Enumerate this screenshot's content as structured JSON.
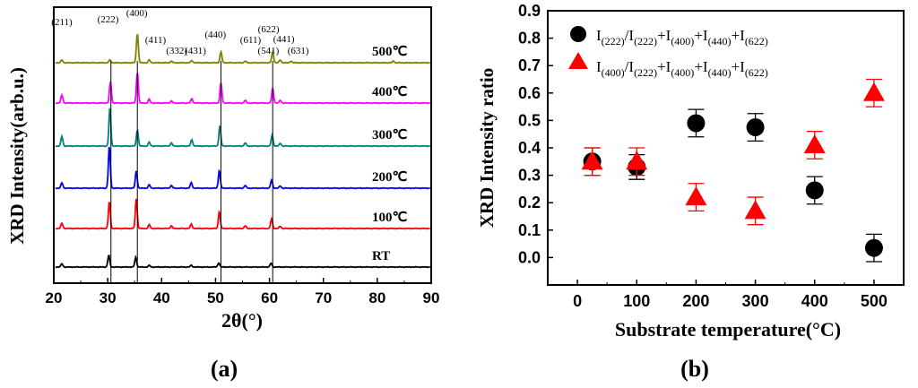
{
  "chart_data": [
    {
      "type": "line",
      "panel_label": "(a)",
      "xlabel": "2θ(°)",
      "ylabel": "XRD Intensity(arb.u.)",
      "xlim": [
        20,
        90
      ],
      "x_ticks": [
        "20",
        "30",
        "40",
        "50",
        "60",
        "70",
        "80",
        "90"
      ],
      "vertical_reference_lines": [
        30.6,
        35.5,
        51.0,
        60.6
      ],
      "peak_annotations": [
        {
          "label": "(211)",
          "x": 21.5
        },
        {
          "label": "(222)",
          "x": 30.4
        },
        {
          "label": "(400)",
          "x": 35.4
        },
        {
          "label": "(411)",
          "x": 37.7
        },
        {
          "label": "(332)",
          "x": 41.8
        },
        {
          "label": "(431)",
          "x": 45.6
        },
        {
          "label": "(440)",
          "x": 50.8
        },
        {
          "label": "(611)",
          "x": 55.5
        },
        {
          "label": "(541)",
          "x": 58.8
        },
        {
          "label": "(622)",
          "x": 60.5
        },
        {
          "label": "(441)",
          "x": 62.0
        },
        {
          "label": "(631)",
          "x": 64.0
        }
      ],
      "series": [
        {
          "name": "500℃",
          "color": "#808000",
          "offset": 5,
          "peaks": [
            {
              "x": 21.5,
              "h": 0.05
            },
            {
              "x": 30.4,
              "h": 0.05
            },
            {
              "x": 35.5,
              "h": 0.55
            },
            {
              "x": 37.7,
              "h": 0.05
            },
            {
              "x": 41.8,
              "h": 0.03
            },
            {
              "x": 45.6,
              "h": 0.04
            },
            {
              "x": 51.0,
              "h": 0.2
            },
            {
              "x": 55.5,
              "h": 0.03
            },
            {
              "x": 60.6,
              "h": 0.2
            },
            {
              "x": 62.0,
              "h": 0.05
            },
            {
              "x": 64.0,
              "h": 0.03
            },
            {
              "x": 83.0,
              "h": 0.03
            }
          ]
        },
        {
          "name": "400℃",
          "color": "#ff00ff",
          "offset": 4,
          "peaks": [
            {
              "x": 21.5,
              "h": 0.15
            },
            {
              "x": 30.5,
              "h": 0.4
            },
            {
              "x": 35.5,
              "h": 0.58
            },
            {
              "x": 37.7,
              "h": 0.07
            },
            {
              "x": 41.8,
              "h": 0.04
            },
            {
              "x": 45.6,
              "h": 0.08
            },
            {
              "x": 51.0,
              "h": 0.38
            },
            {
              "x": 55.5,
              "h": 0.05
            },
            {
              "x": 60.6,
              "h": 0.28
            },
            {
              "x": 62.0,
              "h": 0.05
            }
          ]
        },
        {
          "name": "300℃",
          "color": "#008080",
          "offset": 3,
          "peaks": [
            {
              "x": 21.5,
              "h": 0.18
            },
            {
              "x": 30.4,
              "h": 0.7
            },
            {
              "x": 35.5,
              "h": 0.3
            },
            {
              "x": 37.7,
              "h": 0.07
            },
            {
              "x": 41.8,
              "h": 0.06
            },
            {
              "x": 45.6,
              "h": 0.12
            },
            {
              "x": 50.8,
              "h": 0.38
            },
            {
              "x": 55.5,
              "h": 0.06
            },
            {
              "x": 60.5,
              "h": 0.2
            },
            {
              "x": 62.0,
              "h": 0.05
            }
          ]
        },
        {
          "name": "200℃",
          "color": "#0000ff",
          "offset": 2,
          "peaks": [
            {
              "x": 21.5,
              "h": 0.1
            },
            {
              "x": 30.3,
              "h": 0.78
            },
            {
              "x": 35.3,
              "h": 0.32
            },
            {
              "x": 37.7,
              "h": 0.06
            },
            {
              "x": 41.8,
              "h": 0.05
            },
            {
              "x": 45.5,
              "h": 0.1
            },
            {
              "x": 50.7,
              "h": 0.33
            },
            {
              "x": 55.5,
              "h": 0.05
            },
            {
              "x": 60.4,
              "h": 0.15
            },
            {
              "x": 62.0,
              "h": 0.04
            }
          ]
        },
        {
          "name": "100℃",
          "color": "#ff0000",
          "offset": 1,
          "peaks": [
            {
              "x": 21.5,
              "h": 0.1
            },
            {
              "x": 30.3,
              "h": 0.5
            },
            {
              "x": 35.3,
              "h": 0.55
            },
            {
              "x": 37.7,
              "h": 0.07
            },
            {
              "x": 41.8,
              "h": 0.05
            },
            {
              "x": 45.5,
              "h": 0.08
            },
            {
              "x": 50.7,
              "h": 0.32
            },
            {
              "x": 55.5,
              "h": 0.05
            },
            {
              "x": 60.4,
              "h": 0.18
            },
            {
              "x": 62.0,
              "h": 0.04
            }
          ]
        },
        {
          "name": "RT",
          "color": "#000000",
          "offset": 0,
          "peaks": [
            {
              "x": 21.5,
              "h": 0.06
            },
            {
              "x": 30.2,
              "h": 0.22
            },
            {
              "x": 35.2,
              "h": 0.18
            },
            {
              "x": 37.7,
              "h": 0.03
            },
            {
              "x": 45.5,
              "h": 0.03
            },
            {
              "x": 50.6,
              "h": 0.08
            },
            {
              "x": 60.3,
              "h": 0.07
            }
          ]
        }
      ]
    },
    {
      "type": "scatter",
      "panel_label": "(b)",
      "xlabel": "Substrate temperature(°C)",
      "ylabel": "XRD Intensity ratio",
      "xlim": [
        -50,
        550
      ],
      "ylim": [
        -0.1,
        0.9
      ],
      "x_ticks": [
        0,
        100,
        200,
        300,
        400,
        500
      ],
      "y_ticks": [
        "0.0",
        "0.1",
        "0.2",
        "0.3",
        "0.4",
        "0.5",
        "0.6",
        "0.7",
        "0.8",
        "0.9"
      ],
      "series": [
        {
          "name": "I(222)/I(222)+I(400)+I(440)+I(622)",
          "marker": "circle",
          "color": "#000000",
          "x": [
            25,
            100,
            200,
            300,
            400,
            500
          ],
          "y": [
            0.35,
            0.33,
            0.49,
            0.475,
            0.245,
            0.035
          ],
          "err": [
            0.05,
            0.045,
            0.05,
            0.05,
            0.05,
            0.05
          ]
        },
        {
          "name": "I(400)/I(222)+I(400)+I(440)+I(622)",
          "marker": "triangle",
          "color": "#ff0000",
          "x": [
            25,
            100,
            200,
            300,
            400,
            500
          ],
          "y": [
            0.35,
            0.35,
            0.22,
            0.17,
            0.41,
            0.6
          ],
          "err": [
            0.05,
            0.05,
            0.05,
            0.05,
            0.05,
            0.05
          ]
        }
      ]
    }
  ]
}
